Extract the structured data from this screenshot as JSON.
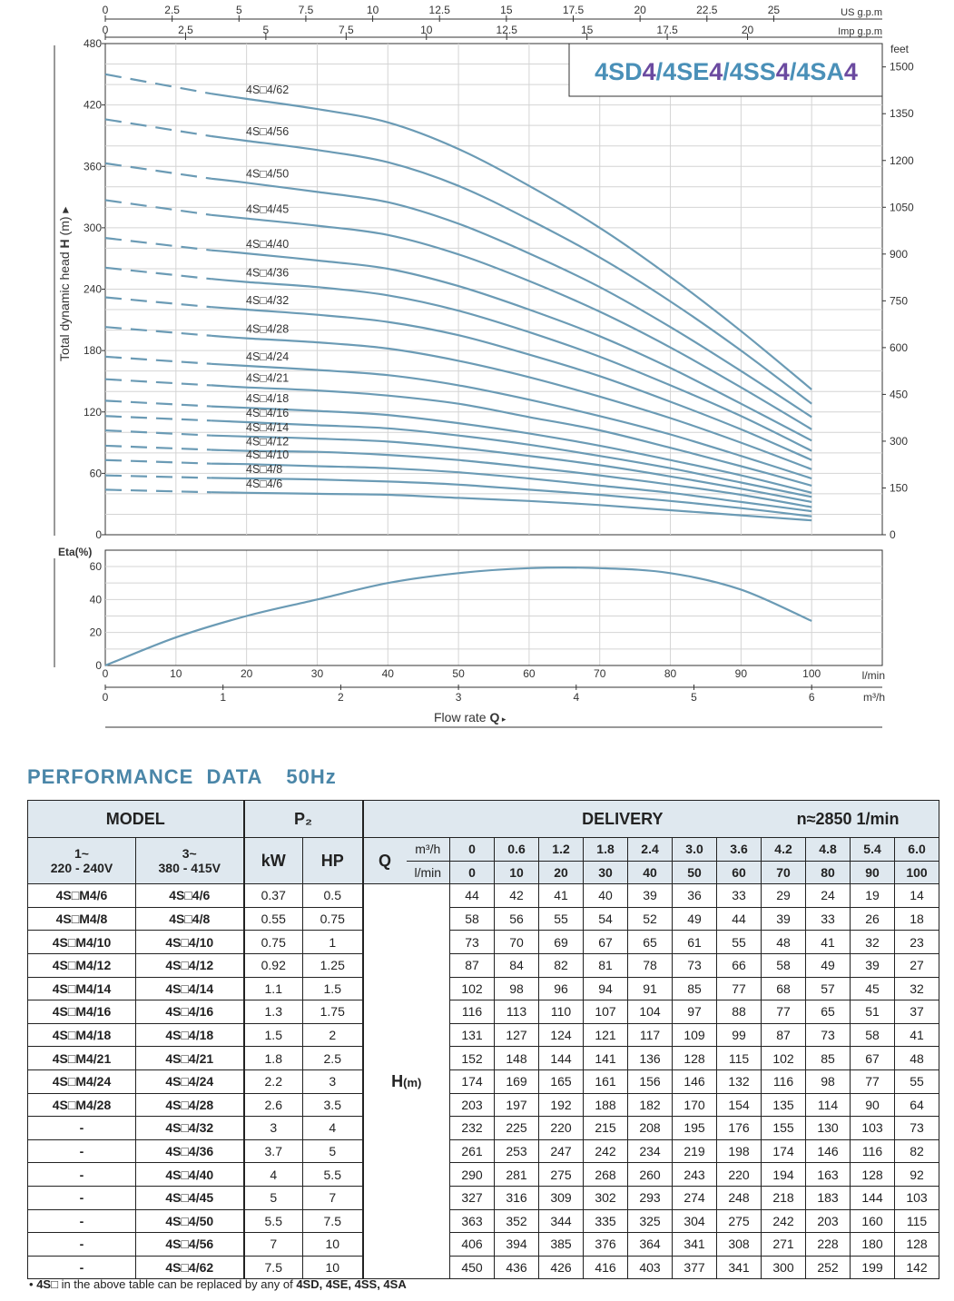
{
  "chart_data": [
    {
      "type": "line",
      "title": "4SD4/4SE4/4SS4/4SA4",
      "title_parts": [
        {
          "text": "4SD",
          "color": "#4a90b8"
        },
        {
          "text": "4",
          "color": "#6b4aa0"
        },
        {
          "text": "/4SE",
          "color": "#4a90b8"
        },
        {
          "text": "4",
          "color": "#6b4aa0"
        },
        {
          "text": "/4SS",
          "color": "#4a90b8"
        },
        {
          "text": "4",
          "color": "#6b4aa0"
        },
        {
          "text": "/4SA",
          "color": "#4a90b8"
        },
        {
          "text": "4",
          "color": "#6b4aa0"
        }
      ],
      "ylabel": "Total dynamic head H (m)",
      "xlabel": "Flow rate Q",
      "xlim": [
        0,
        110
      ],
      "ylim": [
        0,
        480
      ],
      "y_ticks": [
        0,
        60,
        120,
        180,
        240,
        300,
        360,
        420,
        480
      ],
      "right_axis": {
        "label": "feet",
        "ticks": [
          "0",
          "150",
          "300",
          "450",
          "600",
          "750",
          "900",
          "1050",
          "1200",
          "1350",
          "1500"
        ]
      },
      "top_axis_us": {
        "label": "US g.p.m",
        "ticks": [
          "0",
          "2.5",
          "5",
          "7.5",
          "10",
          "12.5",
          "15",
          "17.5",
          "20",
          "22.5",
          "25"
        ]
      },
      "top_axis_imp": {
        "label": "Imp g.p.m",
        "ticks": [
          "0",
          "2.5",
          "5",
          "7.5",
          "10",
          "12.5",
          "15",
          "17.5",
          "20"
        ]
      },
      "line_color": "#6b9bb5",
      "x": [
        0,
        10,
        20,
        30,
        40,
        50,
        60,
        70,
        80,
        90,
        100
      ],
      "dashed_until": 15,
      "series": [
        {
          "name": "4S□4/62",
          "values": [
            450,
            436,
            426,
            416,
            403,
            377,
            341,
            300,
            252,
            199,
            142
          ]
        },
        {
          "name": "4S□4/56",
          "values": [
            406,
            394,
            385,
            376,
            364,
            341,
            308,
            271,
            228,
            180,
            128
          ]
        },
        {
          "name": "4S□4/50",
          "values": [
            363,
            352,
            344,
            335,
            325,
            304,
            275,
            242,
            203,
            160,
            115
          ]
        },
        {
          "name": "4S□4/45",
          "values": [
            327,
            316,
            309,
            302,
            293,
            274,
            248,
            218,
            183,
            144,
            103
          ]
        },
        {
          "name": "4S□4/40",
          "values": [
            290,
            281,
            275,
            268,
            260,
            243,
            220,
            194,
            163,
            128,
            92
          ]
        },
        {
          "name": "4S□4/36",
          "values": [
            261,
            253,
            247,
            242,
            234,
            219,
            198,
            174,
            146,
            116,
            82
          ]
        },
        {
          "name": "4S□4/32",
          "values": [
            232,
            225,
            220,
            215,
            208,
            195,
            176,
            155,
            130,
            103,
            73
          ]
        },
        {
          "name": "4S□4/28",
          "values": [
            203,
            197,
            192,
            188,
            182,
            170,
            154,
            135,
            114,
            90,
            64
          ]
        },
        {
          "name": "4S□4/24",
          "values": [
            174,
            169,
            165,
            161,
            156,
            146,
            132,
            116,
            98,
            77,
            55
          ]
        },
        {
          "name": "4S□4/21",
          "values": [
            152,
            148,
            144,
            141,
            136,
            128,
            115,
            102,
            85,
            67,
            48
          ]
        },
        {
          "name": "4S□4/18",
          "values": [
            131,
            127,
            124,
            121,
            117,
            109,
            99,
            87,
            73,
            58,
            41
          ]
        },
        {
          "name": "4S□4/16",
          "values": [
            116,
            113,
            110,
            107,
            104,
            97,
            88,
            77,
            65,
            51,
            37
          ]
        },
        {
          "name": "4S□4/14",
          "values": [
            102,
            98,
            96,
            94,
            91,
            85,
            77,
            68,
            57,
            45,
            32
          ]
        },
        {
          "name": "4S□4/12",
          "values": [
            87,
            84,
            82,
            81,
            78,
            73,
            66,
            58,
            49,
            39,
            27
          ]
        },
        {
          "name": "4S□4/10",
          "values": [
            73,
            70,
            69,
            67,
            65,
            61,
            55,
            48,
            41,
            32,
            23
          ]
        },
        {
          "name": "4S□4/8",
          "values": [
            58,
            56,
            55,
            54,
            52,
            49,
            44,
            39,
            33,
            26,
            18
          ]
        },
        {
          "name": "4S□4/6",
          "values": [
            44,
            42,
            41,
            40,
            39,
            36,
            33,
            29,
            24,
            19,
            14
          ]
        }
      ]
    },
    {
      "type": "line",
      "ylabel": "Eta(%)",
      "xlim": [
        0,
        110
      ],
      "ylim": [
        0,
        60
      ],
      "y_ticks": [
        0,
        20,
        40,
        60
      ],
      "x_ticks_lmin": {
        "label": "l/min",
        "ticks": [
          "0",
          "10",
          "20",
          "30",
          "40",
          "50",
          "60",
          "70",
          "80",
          "90",
          "100"
        ]
      },
      "x_ticks_m3h": {
        "label": "m³/h",
        "ticks": [
          "0",
          "1",
          "2",
          "3",
          "4",
          "5",
          "6"
        ]
      },
      "xlabel": "Flow rate Q",
      "x": [
        0,
        10,
        20,
        30,
        40,
        50,
        60,
        70,
        80,
        90,
        100
      ],
      "series": [
        {
          "values": [
            0,
            17,
            30,
            40,
            50,
            56,
            59,
            59,
            56,
            46,
            27
          ]
        }
      ]
    }
  ],
  "performance": {
    "title": "PERFORMANCE  DATA",
    "hz": "50Hz",
    "head": {
      "model": "MODEL",
      "p2": "P₂",
      "delivery": "DELIVERY",
      "speed": "n≈2850 1/min",
      "single_phase": "1~",
      "single_voltage": "220 - 240V",
      "three_phase": "3~",
      "three_voltage": "380 - 415V",
      "kw": "kW",
      "hp": "HP",
      "q": "Q",
      "m3h": "m³/h",
      "lmin": "l/min",
      "h_label": "H",
      "h_unit": "(m)"
    },
    "q_m3h": [
      "0",
      "0.6",
      "1.2",
      "1.8",
      "2.4",
      "3.0",
      "3.6",
      "4.2",
      "4.8",
      "5.4",
      "6.0"
    ],
    "q_lmin": [
      "0",
      "10",
      "20",
      "30",
      "40",
      "50",
      "60",
      "70",
      "80",
      "90",
      "100"
    ],
    "rows": [
      {
        "m1": "4S□M4/6",
        "m3": "4S□4/6",
        "kw": "0.37",
        "hp": "0.5",
        "h": [
          "44",
          "42",
          "41",
          "40",
          "39",
          "36",
          "33",
          "29",
          "24",
          "19",
          "14"
        ]
      },
      {
        "m1": "4S□M4/8",
        "m3": "4S□4/8",
        "kw": "0.55",
        "hp": "0.75",
        "h": [
          "58",
          "56",
          "55",
          "54",
          "52",
          "49",
          "44",
          "39",
          "33",
          "26",
          "18"
        ]
      },
      {
        "m1": "4S□M4/10",
        "m3": "4S□4/10",
        "kw": "0.75",
        "hp": "1",
        "h": [
          "73",
          "70",
          "69",
          "67",
          "65",
          "61",
          "55",
          "48",
          "41",
          "32",
          "23"
        ]
      },
      {
        "m1": "4S□M4/12",
        "m3": "4S□4/12",
        "kw": "0.92",
        "hp": "1.25",
        "h": [
          "87",
          "84",
          "82",
          "81",
          "78",
          "73",
          "66",
          "58",
          "49",
          "39",
          "27"
        ]
      },
      {
        "m1": "4S□M4/14",
        "m3": "4S□4/14",
        "kw": "1.1",
        "hp": "1.5",
        "h": [
          "102",
          "98",
          "96",
          "94",
          "91",
          "85",
          "77",
          "68",
          "57",
          "45",
          "32"
        ]
      },
      {
        "m1": "4S□M4/16",
        "m3": "4S□4/16",
        "kw": "1.3",
        "hp": "1.75",
        "h": [
          "116",
          "113",
          "110",
          "107",
          "104",
          "97",
          "88",
          "77",
          "65",
          "51",
          "37"
        ]
      },
      {
        "m1": "4S□M4/18",
        "m3": "4S□4/18",
        "kw": "1.5",
        "hp": "2",
        "h": [
          "131",
          "127",
          "124",
          "121",
          "117",
          "109",
          "99",
          "87",
          "73",
          "58",
          "41"
        ]
      },
      {
        "m1": "4S□M4/21",
        "m3": "4S□4/21",
        "kw": "1.8",
        "hp": "2.5",
        "h": [
          "152",
          "148",
          "144",
          "141",
          "136",
          "128",
          "115",
          "102",
          "85",
          "67",
          "48"
        ]
      },
      {
        "m1": "4S□M4/24",
        "m3": "4S□4/24",
        "kw": "2.2",
        "hp": "3",
        "h": [
          "174",
          "169",
          "165",
          "161",
          "156",
          "146",
          "132",
          "116",
          "98",
          "77",
          "55"
        ]
      },
      {
        "m1": "4S□M4/28",
        "m3": "4S□4/28",
        "kw": "2.6",
        "hp": "3.5",
        "h": [
          "203",
          "197",
          "192",
          "188",
          "182",
          "170",
          "154",
          "135",
          "114",
          "90",
          "64"
        ]
      },
      {
        "m1": "-",
        "m3": "4S□4/32",
        "kw": "3",
        "hp": "4",
        "h": [
          "232",
          "225",
          "220",
          "215",
          "208",
          "195",
          "176",
          "155",
          "130",
          "103",
          "73"
        ]
      },
      {
        "m1": "-",
        "m3": "4S□4/36",
        "kw": "3.7",
        "hp": "5",
        "h": [
          "261",
          "253",
          "247",
          "242",
          "234",
          "219",
          "198",
          "174",
          "146",
          "116",
          "82"
        ]
      },
      {
        "m1": "-",
        "m3": "4S□4/40",
        "kw": "4",
        "hp": "5.5",
        "h": [
          "290",
          "281",
          "275",
          "268",
          "260",
          "243",
          "220",
          "194",
          "163",
          "128",
          "92"
        ]
      },
      {
        "m1": "-",
        "m3": "4S□4/45",
        "kw": "5",
        "hp": "7",
        "h": [
          "327",
          "316",
          "309",
          "302",
          "293",
          "274",
          "248",
          "218",
          "183",
          "144",
          "103"
        ]
      },
      {
        "m1": "-",
        "m3": "4S□4/50",
        "kw": "5.5",
        "hp": "7.5",
        "h": [
          "363",
          "352",
          "344",
          "335",
          "325",
          "304",
          "275",
          "242",
          "203",
          "160",
          "115"
        ]
      },
      {
        "m1": "-",
        "m3": "4S□4/56",
        "kw": "7",
        "hp": "10",
        "h": [
          "406",
          "394",
          "385",
          "376",
          "364",
          "341",
          "308",
          "271",
          "228",
          "180",
          "128"
        ]
      },
      {
        "m1": "-",
        "m3": "4S□4/62",
        "kw": "7.5",
        "hp": "10",
        "h": [
          "450",
          "436",
          "426",
          "416",
          "403",
          "377",
          "341",
          "300",
          "252",
          "199",
          "142"
        ]
      }
    ],
    "footnote_bullet": "•",
    "footnote_model": "4S□",
    "footnote_text": " in the above table can be replaced by any of ",
    "footnote_list": "4SD, 4SE, 4SS, 4SA"
  }
}
